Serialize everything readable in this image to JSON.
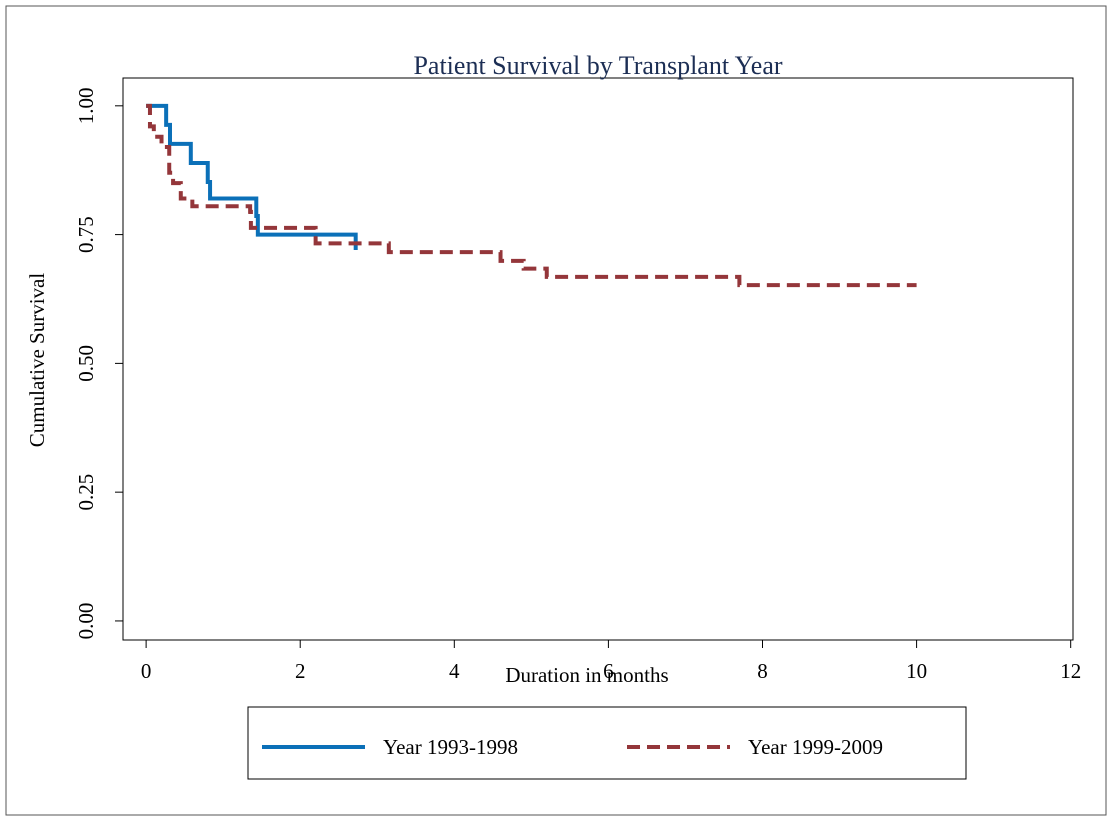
{
  "chart_data": {
    "type": "step",
    "title": "Patient Survival by Transplant Year",
    "xlabel": "Duration in months",
    "ylabel": "Cumulative Survival",
    "xlim": [
      -0.3,
      12.03
    ],
    "xticks": [
      0,
      2,
      4,
      6,
      8,
      10,
      12
    ],
    "ylim": [
      -0.037,
      1.054
    ],
    "yticks": [
      {
        "value": 0,
        "label": "0.00"
      },
      {
        "value": 0.25,
        "label": "0.25"
      },
      {
        "value": 0.5,
        "label": "0.50"
      },
      {
        "value": 0.75,
        "label": "0.75"
      },
      {
        "value": 1,
        "label": "1.00"
      }
    ],
    "grid": false,
    "legend": "bottom",
    "series": [
      {
        "name": "Year 1993-1998",
        "color": "#0b70b8",
        "dash": "solid",
        "x": [
          0,
          0.26,
          0.31,
          0.58,
          0.8,
          0.83,
          1.43,
          1.45,
          2.72
        ],
        "values": [
          1,
          0.963,
          0.926,
          0.889,
          0.852,
          0.82,
          0.786,
          0.75,
          0.72
        ]
      },
      {
        "name": "Year 1999-2009",
        "color": "#94363a",
        "dash": "dashed",
        "x": [
          0,
          0.05,
          0.1,
          0.2,
          0.3,
          0.35,
          0.45,
          0.6,
          1.35,
          1.36,
          2.2,
          3.15,
          4.6,
          4.9,
          5.2,
          7.7,
          10
        ],
        "values": [
          1,
          0.96,
          0.94,
          0.92,
          0.87,
          0.85,
          0.82,
          0.805,
          0.794,
          0.763,
          0.733,
          0.716,
          0.699,
          0.684,
          0.668,
          0.652,
          0.652
        ]
      }
    ]
  }
}
